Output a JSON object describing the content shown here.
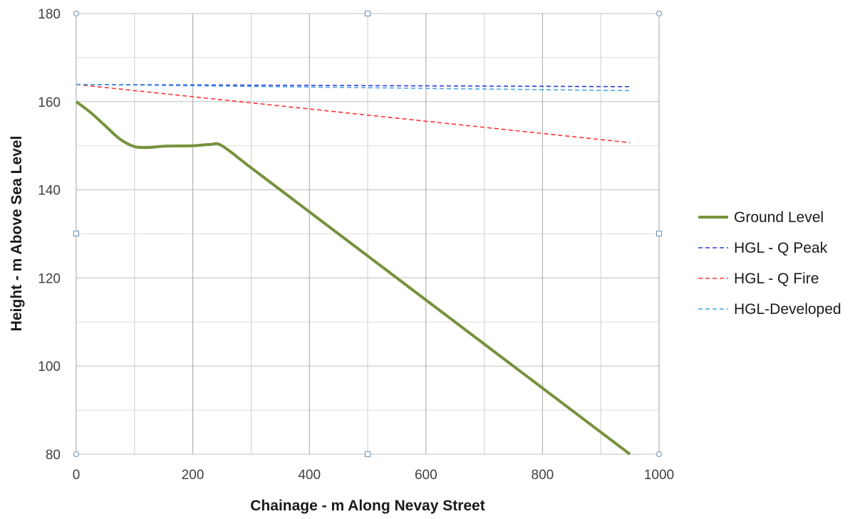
{
  "chart_data": {
    "type": "line",
    "title": "",
    "xlabel": "Chainage - m Along Nevay Street",
    "ylabel": "Height - m Above Sea Level",
    "xlim": [
      0,
      1000
    ],
    "ylim": [
      80,
      180
    ],
    "x_ticks": [
      "0",
      "200",
      "400",
      "600",
      "800",
      "1000"
    ],
    "y_ticks": [
      "80",
      "100",
      "120",
      "140",
      "160",
      "180"
    ],
    "grid": true,
    "legend_position": "right",
    "series": [
      {
        "name": "Ground Level",
        "color": "#76923c",
        "style": "solid",
        "x": [
          0,
          25,
          50,
          75,
          100,
          125,
          150,
          200,
          230,
          250,
          300,
          400,
          500,
          600,
          700,
          800,
          900,
          950
        ],
        "y": [
          160,
          157.5,
          154.5,
          151.5,
          149.8,
          149.6,
          149.9,
          150,
          150.3,
          150,
          145,
          135,
          125,
          115,
          105,
          95,
          85,
          80
        ]
      },
      {
        "name": "HGL - Q Peak",
        "color": "#2e3bd6",
        "style": "dashed",
        "x": [
          0,
          950
        ],
        "y": [
          163.9,
          163.4
        ]
      },
      {
        "name": "HGL - Q Fire",
        "color": "#ff3030",
        "style": "dashed",
        "x": [
          0,
          950
        ],
        "y": [
          163.9,
          150.7
        ]
      },
      {
        "name": "HGL-Developed",
        "color": "#4aa5e6",
        "style": "dashed",
        "x": [
          0,
          950
        ],
        "y": [
          163.9,
          162.5
        ]
      }
    ]
  }
}
